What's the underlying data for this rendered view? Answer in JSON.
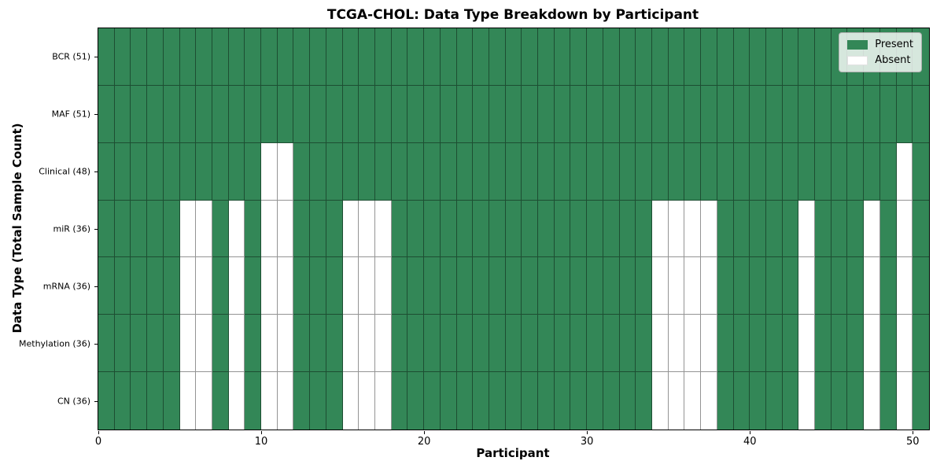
{
  "chart_data": {
    "type": "heatmap",
    "title": "TCGA-CHOL: Data Type Breakdown by Participant",
    "xlabel": "Participant",
    "ylabel": "Data Type (Total Sample Count)",
    "n_participants": 51,
    "x_range": [
      0,
      51
    ],
    "x_ticks": [
      0,
      10,
      20,
      30,
      40,
      50
    ],
    "grid": "cell-borders",
    "legend_position": "upper right",
    "legend": [
      {
        "label": "Present",
        "color": "#338757"
      },
      {
        "label": "Absent",
        "color": "#ffffff"
      }
    ],
    "colors": {
      "present": "#338757",
      "absent": "#ffffff",
      "cell_border": "rgba(0,0,0,0.42)",
      "frame": "#000000",
      "legend_bg": "rgba(255,255,255,0.8)",
      "legend_border": "#b0b0b0"
    },
    "rows": [
      {
        "label": "BCR (51)",
        "total_present": 51,
        "absent_participants": []
      },
      {
        "label": "MAF (51)",
        "total_present": 51,
        "absent_participants": []
      },
      {
        "label": "Clinical (48)",
        "total_present": 48,
        "absent_participants": [
          10,
          11,
          49
        ]
      },
      {
        "label": "miR (36)",
        "total_present": 36,
        "absent_participants": [
          5,
          6,
          8,
          10,
          11,
          15,
          16,
          17,
          34,
          35,
          36,
          37,
          43,
          47,
          49
        ]
      },
      {
        "label": "mRNA (36)",
        "total_present": 36,
        "absent_participants": [
          5,
          6,
          8,
          10,
          11,
          15,
          16,
          17,
          34,
          35,
          36,
          37,
          43,
          47,
          49
        ]
      },
      {
        "label": "Methylation (36)",
        "total_present": 36,
        "absent_participants": [
          5,
          6,
          8,
          10,
          11,
          15,
          16,
          17,
          34,
          35,
          36,
          37,
          43,
          47,
          49
        ]
      },
      {
        "label": "CN (36)",
        "total_present": 36,
        "absent_participants": [
          5,
          6,
          8,
          10,
          11,
          15,
          16,
          17,
          34,
          35,
          36,
          37,
          43,
          47,
          49
        ]
      }
    ]
  }
}
